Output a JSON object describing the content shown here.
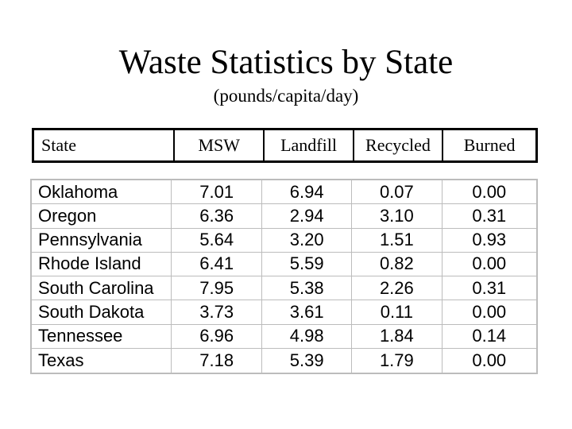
{
  "slide": {
    "title": "Waste Statistics by State",
    "subtitle": "(pounds/capita/day)"
  },
  "table": {
    "columns": [
      "State",
      "MSW",
      "Landfill",
      "Recycled",
      "Burned"
    ],
    "rows": [
      [
        "Oklahoma",
        "7.01",
        "6.94",
        "0.07",
        "0.00"
      ],
      [
        "Oregon",
        "6.36",
        "2.94",
        "3.10",
        "0.31"
      ],
      [
        "Pennsylvania",
        "5.64",
        "3.20",
        "1.51",
        "0.93"
      ],
      [
        "Rhode Island",
        "6.41",
        "5.59",
        "0.82",
        "0.00"
      ],
      [
        "South Carolina",
        "7.95",
        "5.38",
        "2.26",
        "0.31"
      ],
      [
        "South Dakota",
        "3.73",
        "3.61",
        "0.11",
        "0.00"
      ],
      [
        "Tennessee",
        "6.96",
        "4.98",
        "1.84",
        "0.14"
      ],
      [
        "Texas",
        "7.18",
        "5.39",
        "1.79",
        "0.00"
      ]
    ]
  },
  "colors": {
    "background": "#ffffff",
    "text": "#000000",
    "header_border": "#000000",
    "grid_border": "#bcbcbc"
  },
  "chart_data": {
    "type": "table",
    "title": "Waste Statistics by State",
    "subtitle": "(pounds/capita/day)",
    "columns": [
      "State",
      "MSW",
      "Landfill",
      "Recycled",
      "Burned"
    ],
    "rows": [
      [
        "Oklahoma",
        7.01,
        6.94,
        0.07,
        0.0
      ],
      [
        "Oregon",
        6.36,
        2.94,
        3.1,
        0.31
      ],
      [
        "Pennsylvania",
        5.64,
        3.2,
        1.51,
        0.93
      ],
      [
        "Rhode Island",
        6.41,
        5.59,
        0.82,
        0.0
      ],
      [
        "South Carolina",
        7.95,
        5.38,
        2.26,
        0.31
      ],
      [
        "South Dakota",
        3.73,
        3.61,
        0.11,
        0.0
      ],
      [
        "Tennessee",
        6.96,
        4.98,
        1.84,
        0.14
      ],
      [
        "Texas",
        7.18,
        5.39,
        1.79,
        0.0
      ]
    ]
  }
}
